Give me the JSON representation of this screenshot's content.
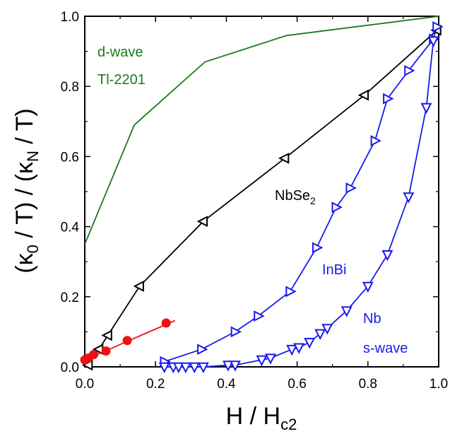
{
  "chart_data": {
    "type": "line",
    "xlabel": {
      "main": "H / H",
      "sub": "c2"
    },
    "ylabel": {
      "p1": "(κ",
      "s1": "0",
      "p2": " / T) / (κ",
      "s2": "N",
      "p3": " / T)"
    },
    "xlim": [
      0,
      1.0
    ],
    "ylim": [
      0,
      1.0
    ],
    "xticks": [
      "0.0",
      "0.2",
      "0.4",
      "0.6",
      "0.8",
      "1.0"
    ],
    "yticks": [
      "0.0",
      "0.2",
      "0.4",
      "0.6",
      "0.8",
      "1.0"
    ],
    "grid": false,
    "series": [
      {
        "name": "Tl-2201",
        "color": "#1a7a1a",
        "marker": "none",
        "x": [
          0.0,
          0.14,
          0.34,
          0.57,
          1.0
        ],
        "y": [
          0.35,
          0.69,
          0.87,
          0.945,
          1.0
        ]
      },
      {
        "name": "NbSe2",
        "color": "#000000",
        "marker": "triangle-left",
        "x": [
          0.01,
          0.04,
          0.065,
          0.155,
          0.335,
          0.565,
          0.79,
          0.995
        ],
        "y": [
          0.005,
          0.05,
          0.09,
          0.23,
          0.415,
          0.595,
          0.775,
          0.96
        ]
      },
      {
        "name": "InBi",
        "color": "#1a1aee",
        "marker": "triangle-right",
        "x": [
          0.225,
          0.33,
          0.425,
          0.49,
          0.58,
          0.655,
          0.71,
          0.75,
          0.82,
          0.855,
          0.915,
          0.985,
          0.995
        ],
        "y": [
          0.015,
          0.05,
          0.1,
          0.145,
          0.215,
          0.34,
          0.455,
          0.51,
          0.645,
          0.765,
          0.845,
          0.935,
          0.97
        ]
      },
      {
        "name": "Nb",
        "color": "#1a1aee",
        "marker": "triangle-down",
        "x": [
          0.225,
          0.25,
          0.265,
          0.285,
          0.31,
          0.335,
          0.405,
          0.425,
          0.5,
          0.525,
          0.585,
          0.605,
          0.635,
          0.665,
          0.685,
          0.74,
          0.8,
          0.855,
          0.915,
          0.965,
          0.985
        ],
        "y": [
          0.0,
          0.0,
          0.0,
          0.0,
          0.0,
          0.0,
          0.005,
          0.005,
          0.02,
          0.025,
          0.05,
          0.055,
          0.07,
          0.095,
          0.11,
          0.16,
          0.23,
          0.32,
          0.485,
          0.74,
          0.93
        ]
      },
      {
        "name": "",
        "color": "#ee1111",
        "marker": "circle",
        "x": [
          0.0,
          0.01,
          0.025,
          0.06,
          0.12,
          0.23
        ],
        "y": [
          0.02,
          0.025,
          0.035,
          0.045,
          0.075,
          0.125
        ],
        "fit": {
          "x": [
            0.0,
            0.255
          ],
          "y": [
            0.02,
            0.132
          ]
        }
      }
    ],
    "annotations": [
      {
        "key": "dwave",
        "text": "d-wave",
        "color": "#1a7a1a"
      },
      {
        "key": "tl",
        "text": "Tl-2201",
        "color": "#1a7a1a"
      },
      {
        "key": "nbse2",
        "text": "NbSe",
        "sub": "2",
        "color": "#000000"
      },
      {
        "key": "inbi",
        "text": "InBi",
        "color": "#1a1aee"
      },
      {
        "key": "nb",
        "text": "Nb",
        "color": "#1a1aee"
      },
      {
        "key": "swave",
        "text": "s-wave",
        "color": "#1a1aee"
      }
    ]
  }
}
